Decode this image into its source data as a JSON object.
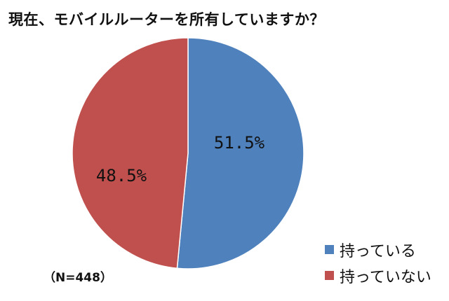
{
  "chart_data": {
    "type": "pie",
    "title": "現在、モバイルルーターを所有していますか？",
    "categories": [
      "持っている",
      "持っていない"
    ],
    "values": [
      51.5,
      48.5
    ],
    "labels": [
      "51.5%",
      "48.5%"
    ],
    "colors": [
      "#4F81BD",
      "#C0504D"
    ],
    "legend_position": "bottom-right",
    "note": "（N=448）"
  }
}
